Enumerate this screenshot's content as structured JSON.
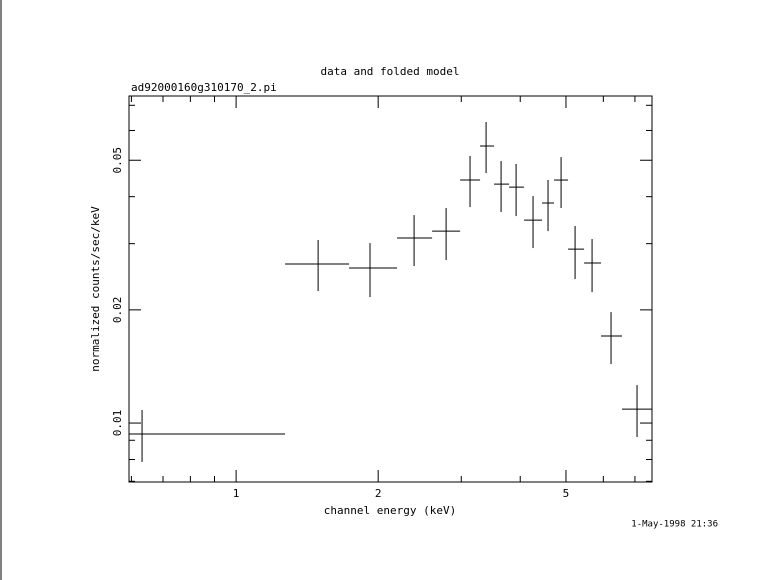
{
  "chart_data": {
    "type": "errorbar",
    "title": "data and folded model",
    "subtitle": "ad92000160g310170_2.pi",
    "xlabel": "channel energy (keV)",
    "ylabel": "normalized counts/sec/keV",
    "timestamp": "1-May-1998 21:36",
    "xscale": "log",
    "yscale": "log",
    "color": "#000000",
    "xlim": [
      0.593,
      7.608
    ],
    "ylim": [
      0.00697,
      0.0741
    ],
    "xticks": [
      1,
      2,
      5
    ],
    "yticks": [
      0.01,
      0.02,
      0.05
    ],
    "x_minor_ticks": [
      0.6,
      0.7,
      0.8,
      0.9,
      3,
      4,
      6,
      7
    ],
    "y_minor_ticks": [
      0.007,
      0.008,
      0.009,
      0.03,
      0.04,
      0.06,
      0.07
    ],
    "series": [
      {
        "x": [
          0.632,
          1.492,
          1.922,
          2.383,
          2.786,
          3.131,
          3.386,
          3.643,
          3.92,
          4.258,
          4.581,
          4.882,
          5.227,
          5.679,
          6.23,
          7.072
        ],
        "x_lo": [
          0.593,
          1.27,
          1.735,
          2.193,
          2.602,
          2.983,
          3.288,
          3.521,
          3.788,
          4.076,
          4.449,
          4.717,
          5.051,
          5.462,
          5.933,
          6.573
        ],
        "x_hi": [
          1.27,
          1.735,
          2.193,
          2.602,
          2.983,
          3.288,
          3.521,
          3.788,
          4.076,
          4.449,
          4.717,
          5.051,
          5.462,
          5.933,
          6.573,
          7.608
        ],
        "y": [
          0.00935,
          0.02648,
          0.02584,
          0.03105,
          0.0324,
          0.04429,
          0.05455,
          0.0432,
          0.04241,
          0.03466,
          0.03848,
          0.04429,
          0.02902,
          0.02664,
          0.01704,
          0.01089
        ],
        "y_lo": [
          0.00788,
          0.02244,
          0.02163,
          0.02616,
          0.02713,
          0.03754,
          0.04623,
          0.03641,
          0.03552,
          0.0292,
          0.0324,
          0.03731,
          0.02415,
          0.0223,
          0.01435,
          0.00918
        ],
        "y_hi": [
          0.01083,
          0.03067,
          0.03011,
          0.03574,
          0.03731,
          0.0513,
          0.06318,
          0.04976,
          0.04885,
          0.04015,
          0.04429,
          0.05099,
          0.03343,
          0.03086,
          0.01973,
          0.01262
        ]
      }
    ]
  }
}
